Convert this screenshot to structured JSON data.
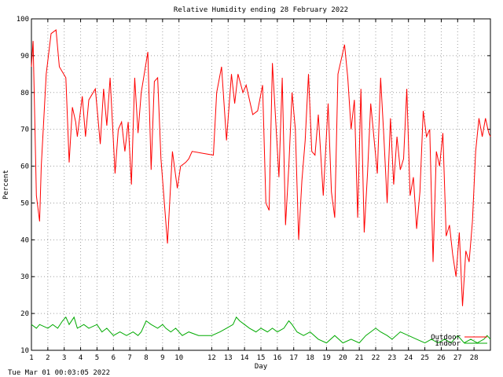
{
  "footer": {
    "timestamp": "Tue Mar 01 00:03:05 2022"
  },
  "chart_data": {
    "type": "line",
    "title": "Relative Humidity ending 28 February 2022",
    "xlabel": "Day",
    "ylabel": "Percent",
    "xlim": [
      1,
      29
    ],
    "ylim": [
      10,
      100
    ],
    "yticks": [
      10,
      20,
      30,
      40,
      50,
      60,
      70,
      80,
      90,
      100
    ],
    "xticks": [
      1,
      2,
      3,
      4,
      5,
      6,
      7,
      8,
      9,
      10,
      12,
      13,
      14,
      15,
      16,
      17,
      18,
      19,
      20,
      21,
      22,
      23,
      24,
      25,
      26,
      27,
      28
    ],
    "grid": true,
    "legend_position": "bottom-right",
    "series": [
      {
        "name": "Outdoor",
        "color": "#ff0000",
        "x": [
          1,
          1.1,
          1.3,
          1.5,
          1.6,
          1.9,
          2.2,
          2.5,
          2.7,
          3.1,
          3.3,
          3.5,
          3.7,
          3.8,
          4.1,
          4.3,
          4.5,
          4.9,
          5.2,
          5.4,
          5.6,
          5.8,
          6.1,
          6.3,
          6.5,
          6.7,
          6.9,
          7.1,
          7.3,
          7.5,
          7.7,
          8.1,
          8.3,
          8.5,
          8.7,
          8.9,
          9.3,
          9.6,
          9.9,
          10.1,
          10.4,
          10.6,
          10.8,
          12.1,
          12.3,
          12.6,
          12.9,
          13.2,
          13.4,
          13.6,
          13.9,
          14.1,
          14.5,
          14.8,
          15.1,
          15.3,
          15.5,
          15.7,
          16.1,
          16.3,
          16.5,
          16.7,
          16.9,
          17.1,
          17.3,
          17.5,
          17.7,
          17.9,
          18.1,
          18.3,
          18.5,
          18.8,
          19.1,
          19.3,
          19.5,
          19.7,
          20.1,
          20.3,
          20.5,
          20.7,
          20.9,
          21.1,
          21.3,
          21.5,
          21.7,
          22.1,
          22.3,
          22.5,
          22.7,
          22.9,
          23.1,
          23.3,
          23.5,
          23.7,
          23.9,
          24.1,
          24.3,
          24.5,
          24.7,
          24.9,
          25.1,
          25.3,
          25.5,
          25.7,
          25.9,
          26.1,
          26.3,
          26.5,
          26.7,
          26.9,
          27.1,
          27.3,
          27.5,
          27.7,
          27.9,
          28.1,
          28.3,
          28.5,
          28.7,
          28.9,
          29
        ],
        "values": [
          87,
          94,
          52,
          45,
          60,
          85,
          96,
          97,
          87,
          84,
          61,
          76,
          72,
          68,
          79,
          68,
          78,
          81,
          66,
          81,
          71,
          84,
          58,
          70,
          72,
          64,
          72,
          55,
          84,
          69,
          80,
          91,
          59,
          83,
          84,
          62,
          39,
          64,
          54,
          60,
          61,
          62,
          64,
          63,
          80,
          87,
          67,
          85,
          77,
          85,
          80,
          82,
          74,
          75,
          82,
          50,
          48,
          88,
          57,
          84,
          44,
          60,
          80,
          70,
          40,
          56,
          67,
          85,
          64,
          63,
          74,
          52,
          77,
          53,
          46,
          85,
          93,
          84,
          70,
          78,
          46,
          81,
          42,
          58,
          77,
          58,
          84,
          68,
          50,
          73,
          55,
          68,
          59,
          62,
          81,
          52,
          57,
          43,
          53,
          75,
          68,
          70,
          34,
          64,
          60,
          69,
          41,
          44,
          36,
          30,
          42,
          22,
          37,
          34,
          45,
          64,
          73,
          68,
          73,
          69,
          68
        ]
      },
      {
        "name": "Indoor",
        "color": "#00aa00",
        "x": [
          1,
          1.3,
          1.5,
          2,
          2.3,
          2.6,
          2.9,
          3.1,
          3.3,
          3.6,
          3.8,
          4.2,
          4.5,
          5,
          5.3,
          5.6,
          6,
          6.4,
          6.8,
          7.2,
          7.5,
          7.7,
          8,
          8.3,
          8.7,
          9,
          9.2,
          9.5,
          9.8,
          10.2,
          10.6,
          11.2,
          12,
          12.5,
          12.9,
          13.3,
          13.5,
          13.7,
          14,
          14.3,
          14.7,
          15,
          15.4,
          15.7,
          16,
          16.4,
          16.7,
          16.9,
          17.2,
          17.6,
          18,
          18.5,
          19,
          19.5,
          20,
          20.5,
          21,
          21.4,
          21.7,
          22,
          22.3,
          22.7,
          23,
          23.5,
          24,
          24.5,
          25,
          25.4,
          25.8,
          26.2,
          26.6,
          27,
          27.4,
          27.8,
          28.2,
          28.6,
          28.8,
          29
        ],
        "values": [
          17,
          16,
          17,
          16,
          17,
          16,
          18,
          19,
          17,
          19,
          16,
          17,
          16,
          17,
          15,
          16,
          14,
          15,
          14,
          15,
          14,
          15,
          18,
          17,
          16,
          17,
          16,
          15,
          16,
          14,
          15,
          14,
          14,
          15,
          16,
          17,
          19,
          18,
          17,
          16,
          15,
          16,
          15,
          16,
          15,
          16,
          18,
          17,
          15,
          14,
          15,
          13,
          12,
          14,
          12,
          13,
          12,
          14,
          15,
          16,
          15,
          14,
          13,
          15,
          14,
          13,
          12,
          13,
          12,
          13,
          12,
          14,
          12,
          13,
          12,
          13,
          14,
          13
        ]
      }
    ]
  }
}
